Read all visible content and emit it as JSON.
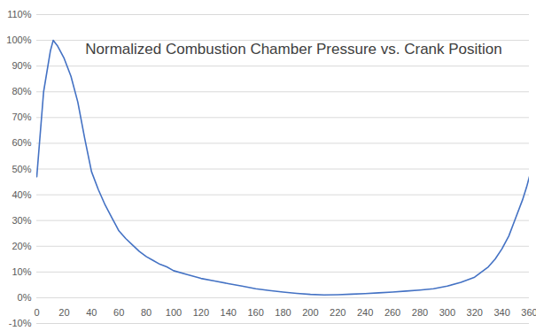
{
  "chart_data": {
    "type": "line",
    "title": "Normalized Combustion Chamber Pressure vs. Crank Position",
    "x": [
      0,
      5,
      10,
      12,
      15,
      20,
      25,
      30,
      35,
      40,
      45,
      50,
      55,
      60,
      65,
      70,
      75,
      80,
      85,
      90,
      95,
      100,
      110,
      120,
      130,
      140,
      150,
      160,
      170,
      180,
      190,
      200,
      210,
      220,
      230,
      240,
      250,
      260,
      270,
      280,
      290,
      300,
      310,
      320,
      325,
      330,
      335,
      340,
      345,
      350,
      355,
      358,
      360
    ],
    "series": [
      {
        "name": "Normalized Combustion Chamber Pressure",
        "color": "#4472c4",
        "values": [
          47,
          80,
          96,
          100,
          98,
          93,
          86,
          76,
          62,
          49,
          42,
          36,
          31,
          26,
          23,
          20.5,
          18,
          16,
          14.5,
          13,
          12,
          10.5,
          9,
          7.5,
          6.5,
          5.5,
          4.5,
          3.5,
          2.8,
          2.2,
          1.7,
          1.3,
          1.1,
          1.2,
          1.4,
          1.6,
          1.9,
          2.2,
          2.6,
          3,
          3.5,
          4.5,
          6,
          8,
          10,
          12,
          15,
          19,
          24,
          31,
          38,
          43,
          47
        ]
      }
    ],
    "xlim": [
      0,
      360
    ],
    "xticks": [
      0,
      20,
      40,
      60,
      80,
      100,
      120,
      140,
      160,
      180,
      200,
      220,
      240,
      260,
      280,
      300,
      320,
      340,
      360
    ],
    "ylim": [
      -10,
      110
    ],
    "yticks": [
      {
        "value": -10,
        "label": "-10%"
      },
      {
        "value": 0,
        "label": "0%"
      },
      {
        "value": 10,
        "label": "10%"
      },
      {
        "value": 20,
        "label": "20%"
      },
      {
        "value": 30,
        "label": "30%"
      },
      {
        "value": 40,
        "label": "40%"
      },
      {
        "value": 50,
        "label": "50%"
      },
      {
        "value": 60,
        "label": "60%"
      },
      {
        "value": 70,
        "label": "70%"
      },
      {
        "value": 80,
        "label": "80%"
      },
      {
        "value": 90,
        "label": "90%"
      },
      {
        "value": 100,
        "label": "100%"
      },
      {
        "value": 110,
        "label": "110%"
      }
    ],
    "grid": true
  }
}
